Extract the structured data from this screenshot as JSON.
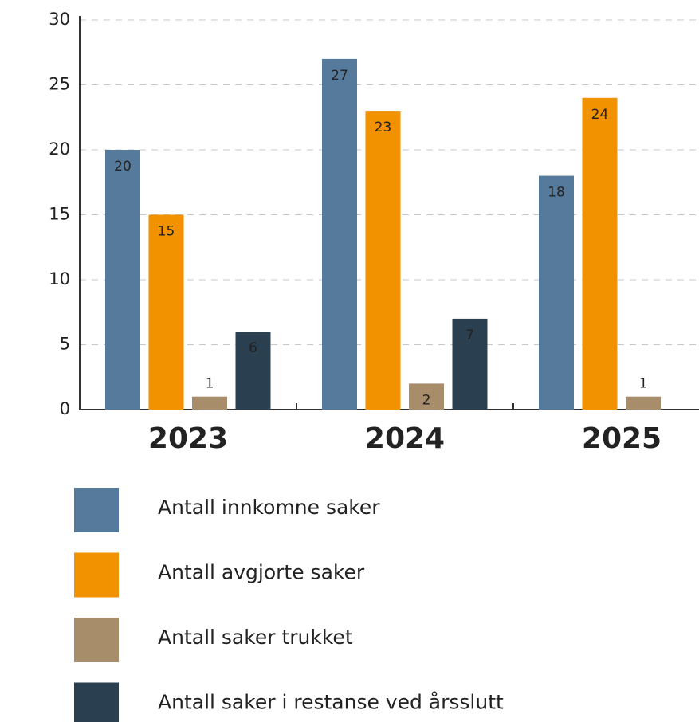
{
  "chart_data": {
    "type": "bar",
    "categories": [
      "2023",
      "2024",
      "2025"
    ],
    "series": [
      {
        "name": "Antall innkomne saker",
        "color": "#557a9b",
        "values": [
          20,
          27,
          18
        ]
      },
      {
        "name": "Antall avgjorte saker",
        "color": "#f39200",
        "values": [
          15,
          23,
          24
        ]
      },
      {
        "name": "Antall saker trukket",
        "color": "#a88d6b",
        "values": [
          1,
          2,
          1
        ]
      },
      {
        "name": "Antall saker i restanse ved årsslutt",
        "color": "#2a3f4f",
        "values": [
          6,
          7,
          null
        ]
      }
    ],
    "ylim": [
      0,
      30
    ],
    "yticks": [
      0,
      5,
      10,
      15,
      20,
      25,
      30
    ],
    "grid": true
  }
}
